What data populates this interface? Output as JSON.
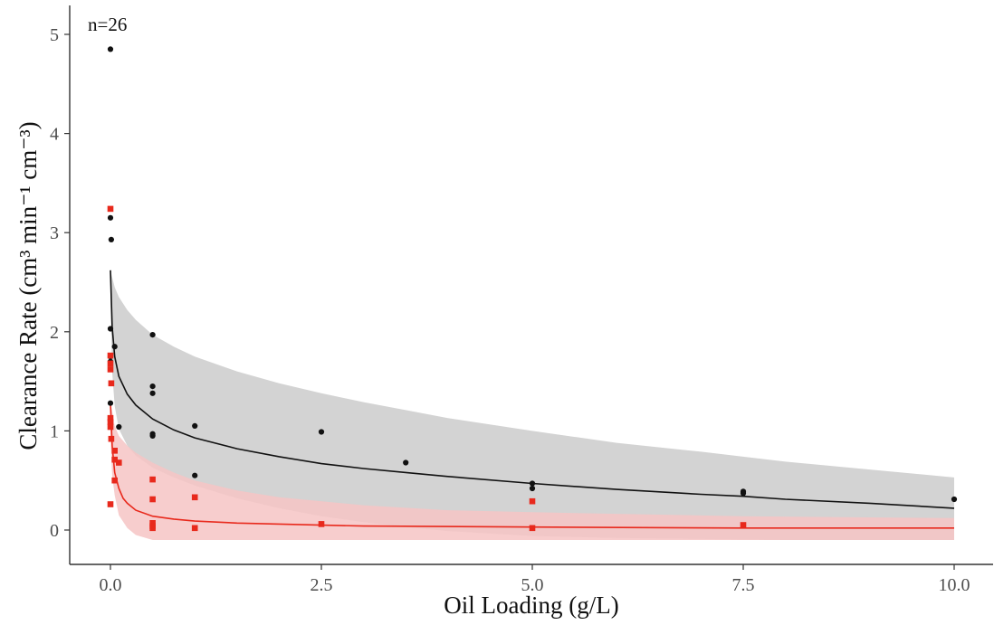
{
  "chart_data": {
    "type": "scatter",
    "annotation": "n=26",
    "xlabel": "Oil Loading (g/L)",
    "ylabel": "Clearance Rate (cm³ min⁻¹ cm⁻³)",
    "xlim": [
      -0.5,
      10.5
    ],
    "ylim": [
      -0.35,
      5.3
    ],
    "x_ticks": [
      0.0,
      2.5,
      5.0,
      7.5,
      10.0
    ],
    "x_tick_labels": [
      "0.0",
      "2.5",
      "5.0",
      "7.5",
      "10.0"
    ],
    "y_ticks": [
      0,
      1,
      2,
      3,
      4,
      5
    ],
    "y_tick_labels": [
      "0",
      "1",
      "2",
      "3",
      "4",
      "5"
    ],
    "grid": false,
    "legend": "none",
    "colors": {
      "black_series": "#111111",
      "red_series": "#e8291c",
      "black_band": "#d3d3d3",
      "red_band": "#f6c4c4"
    },
    "series": [
      {
        "marker": "circle",
        "color": "#111111",
        "points": [
          [
            0.0,
            4.85
          ],
          [
            0.0,
            3.15
          ],
          [
            0.01,
            2.93
          ],
          [
            0.0,
            2.03
          ],
          [
            0.0,
            1.75
          ],
          [
            0.0,
            1.7
          ],
          [
            0.05,
            1.85
          ],
          [
            0.0,
            1.28
          ],
          [
            0.1,
            1.04
          ],
          [
            0.5,
            1.97
          ],
          [
            0.5,
            1.45
          ],
          [
            0.5,
            1.38
          ],
          [
            0.5,
            0.97
          ],
          [
            0.5,
            0.95
          ],
          [
            1.0,
            1.05
          ],
          [
            1.0,
            0.55
          ],
          [
            2.5,
            0.99
          ],
          [
            3.5,
            0.68
          ],
          [
            5.0,
            0.47
          ],
          [
            5.0,
            0.42
          ],
          [
            7.5,
            0.39
          ],
          [
            7.5,
            0.37
          ],
          [
            10.0,
            0.31
          ]
        ],
        "fit": [
          [
            0.0,
            2.62
          ],
          [
            0.02,
            2.05
          ],
          [
            0.05,
            1.75
          ],
          [
            0.1,
            1.55
          ],
          [
            0.2,
            1.37
          ],
          [
            0.3,
            1.26
          ],
          [
            0.5,
            1.12
          ],
          [
            0.75,
            1.01
          ],
          [
            1.0,
            0.93
          ],
          [
            1.5,
            0.82
          ],
          [
            2.0,
            0.74
          ],
          [
            2.5,
            0.67
          ],
          [
            3.0,
            0.62
          ],
          [
            3.5,
            0.58
          ],
          [
            4.0,
            0.54
          ],
          [
            5.0,
            0.47
          ],
          [
            6.0,
            0.41
          ],
          [
            7.0,
            0.36
          ],
          [
            7.5,
            0.34
          ],
          [
            8.0,
            0.31
          ],
          [
            9.0,
            0.27
          ],
          [
            10.0,
            0.22
          ]
        ],
        "band": [
          [
            0.0,
            2.35,
            2.62
          ],
          [
            0.02,
            1.6,
            2.55
          ],
          [
            0.05,
            1.25,
            2.45
          ],
          [
            0.1,
            1.02,
            2.35
          ],
          [
            0.2,
            0.85,
            2.22
          ],
          [
            0.3,
            0.75,
            2.12
          ],
          [
            0.5,
            0.63,
            1.97
          ],
          [
            0.75,
            0.53,
            1.85
          ],
          [
            1.0,
            0.45,
            1.75
          ],
          [
            1.5,
            0.32,
            1.6
          ],
          [
            2.0,
            0.22,
            1.48
          ],
          [
            2.5,
            0.14,
            1.38
          ],
          [
            3.0,
            0.08,
            1.29
          ],
          [
            3.5,
            0.03,
            1.21
          ],
          [
            4.0,
            -0.01,
            1.13
          ],
          [
            5.0,
            -0.06,
            1.0
          ],
          [
            6.0,
            -0.08,
            0.88
          ],
          [
            7.0,
            -0.09,
            0.79
          ],
          [
            8.0,
            -0.1,
            0.69
          ],
          [
            9.0,
            -0.1,
            0.61
          ],
          [
            10.0,
            -0.1,
            0.53
          ]
        ]
      },
      {
        "marker": "square",
        "color": "#e8291c",
        "points": [
          [
            0.0,
            3.24
          ],
          [
            0.0,
            1.76
          ],
          [
            0.0,
            1.68
          ],
          [
            0.0,
            1.62
          ],
          [
            0.01,
            1.48
          ],
          [
            0.0,
            1.13
          ],
          [
            0.0,
            1.09
          ],
          [
            0.0,
            1.04
          ],
          [
            0.01,
            0.92
          ],
          [
            0.0,
            0.26
          ],
          [
            0.05,
            0.8
          ],
          [
            0.05,
            0.71
          ],
          [
            0.05,
            0.5
          ],
          [
            0.1,
            0.68
          ],
          [
            0.5,
            0.51
          ],
          [
            0.5,
            0.31
          ],
          [
            0.5,
            0.07
          ],
          [
            0.5,
            0.04
          ],
          [
            0.5,
            0.02
          ],
          [
            1.0,
            0.33
          ],
          [
            1.0,
            0.02
          ],
          [
            2.5,
            0.06
          ],
          [
            5.0,
            0.29
          ],
          [
            5.0,
            0.02
          ],
          [
            7.5,
            0.05
          ]
        ],
        "fit": [
          [
            0.0,
            1.28
          ],
          [
            0.02,
            0.85
          ],
          [
            0.05,
            0.58
          ],
          [
            0.1,
            0.42
          ],
          [
            0.15,
            0.32
          ],
          [
            0.2,
            0.27
          ],
          [
            0.3,
            0.2
          ],
          [
            0.5,
            0.14
          ],
          [
            0.75,
            0.11
          ],
          [
            1.0,
            0.09
          ],
          [
            1.5,
            0.07
          ],
          [
            2.0,
            0.06
          ],
          [
            3.0,
            0.04
          ],
          [
            5.0,
            0.03
          ],
          [
            7.5,
            0.02
          ],
          [
            10.0,
            0.02
          ]
        ],
        "band": [
          [
            0.0,
            0.95,
            1.3
          ],
          [
            0.02,
            0.55,
            1.2
          ],
          [
            0.05,
            0.35,
            1.05
          ],
          [
            0.1,
            0.15,
            0.95
          ],
          [
            0.2,
            0.02,
            0.85
          ],
          [
            0.3,
            -0.05,
            0.78
          ],
          [
            0.5,
            -0.1,
            0.68
          ],
          [
            0.75,
            -0.1,
            0.58
          ],
          [
            1.0,
            -0.1,
            0.5
          ],
          [
            1.5,
            -0.1,
            0.4
          ],
          [
            2.0,
            -0.1,
            0.33
          ],
          [
            3.0,
            -0.1,
            0.25
          ],
          [
            4.0,
            -0.1,
            0.2
          ],
          [
            5.0,
            -0.1,
            0.18
          ],
          [
            7.5,
            -0.1,
            0.14
          ],
          [
            10.0,
            -0.1,
            0.12
          ]
        ]
      }
    ]
  }
}
